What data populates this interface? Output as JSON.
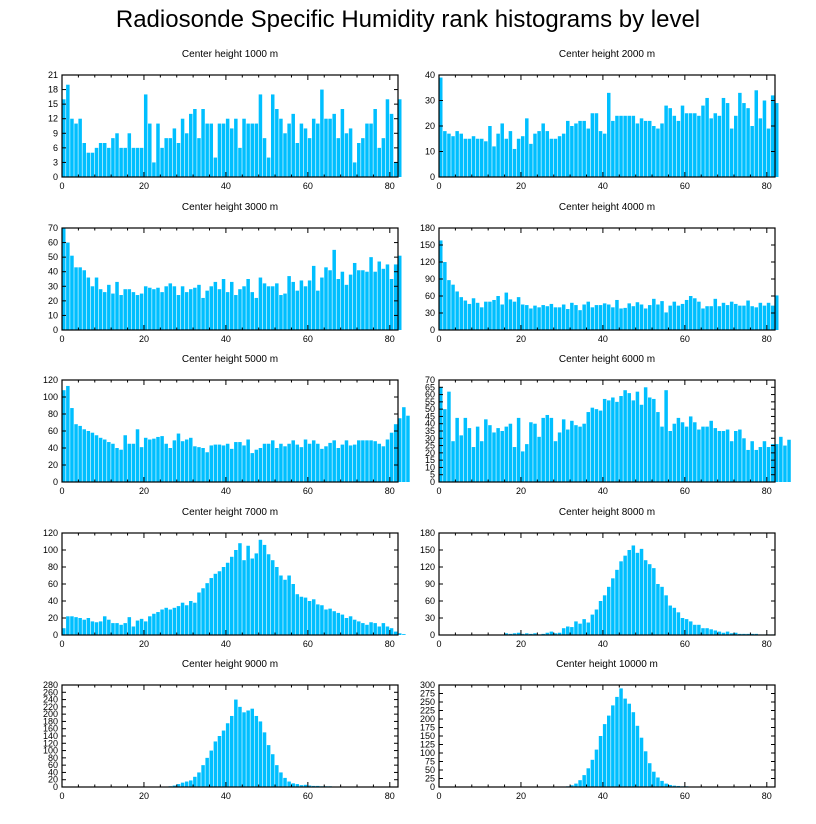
{
  "title": "Radiosonde Specific Humidity rank histograms by level",
  "bar_color": "#00bfff",
  "chart_data": [
    {
      "type": "bar",
      "title": "Center height 1000 m",
      "xlim": [
        0,
        82
      ],
      "ylim": [
        0,
        21
      ],
      "xticks": [
        0,
        20,
        40,
        60,
        80
      ],
      "yticks": [
        0,
        3,
        6,
        9,
        12,
        15,
        18,
        21
      ],
      "values": [
        16,
        19,
        12,
        11,
        12,
        7,
        5,
        5,
        6,
        7,
        7,
        6,
        8,
        9,
        6,
        6,
        9,
        6,
        6,
        6,
        17,
        11,
        3,
        11,
        6,
        8,
        8,
        10,
        7,
        12,
        9,
        13,
        14,
        8,
        14,
        11,
        11,
        4,
        11,
        11,
        12,
        10,
        12,
        6,
        12,
        11,
        11,
        11,
        17,
        8,
        4,
        17,
        14,
        12,
        9,
        11,
        13,
        7,
        11,
        10,
        8,
        12,
        11,
        18,
        12,
        12,
        13,
        8,
        14,
        9,
        10,
        3,
        7,
        8,
        11,
        11,
        14,
        6,
        8,
        16,
        13,
        3,
        16
      ]
    },
    {
      "type": "bar",
      "title": "Center height 2000 m",
      "xlim": [
        0,
        82
      ],
      "ylim": [
        0,
        40
      ],
      "xticks": [
        0,
        20,
        40,
        60,
        80
      ],
      "yticks": [
        0,
        10,
        20,
        30,
        40
      ],
      "values": [
        39,
        18,
        17,
        16,
        18,
        17,
        15,
        15,
        16,
        15,
        15,
        14,
        20,
        12,
        17,
        21,
        15,
        18,
        11,
        15,
        16,
        23,
        13,
        17,
        18,
        21,
        18,
        15,
        15,
        16,
        17,
        22,
        20,
        21,
        22,
        22,
        19,
        25,
        25,
        18,
        17,
        33,
        22,
        24,
        24,
        24,
        24,
        24,
        21,
        23,
        22,
        22,
        20,
        19,
        21,
        28,
        27,
        24,
        22,
        28,
        25,
        25,
        25,
        24,
        28,
        31,
        23,
        25,
        24,
        31,
        29,
        19,
        24,
        33,
        29,
        27,
        20,
        34,
        23,
        30,
        19,
        32,
        29
      ]
    },
    {
      "type": "bar",
      "title": "Center height 3000 m",
      "xlim": [
        0,
        82
      ],
      "ylim": [
        0,
        70
      ],
      "xticks": [
        0,
        20,
        40,
        60,
        80
      ],
      "yticks": [
        0,
        10,
        20,
        30,
        40,
        50,
        60,
        70
      ],
      "values": [
        70,
        60,
        51,
        43,
        43,
        41,
        36,
        30,
        36,
        28,
        26,
        31,
        25,
        33,
        24,
        28,
        28,
        26,
        24,
        25,
        30,
        29,
        28,
        29,
        26,
        30,
        32,
        30,
        24,
        30,
        26,
        28,
        29,
        31,
        22,
        27,
        30,
        33,
        28,
        35,
        26,
        33,
        24,
        28,
        30,
        35,
        26,
        22,
        36,
        32,
        30,
        30,
        32,
        24,
        25,
        37,
        33,
        27,
        34,
        30,
        34,
        44,
        27,
        36,
        43,
        41,
        55,
        35,
        40,
        31,
        38,
        46,
        41,
        41,
        40,
        50,
        40,
        47,
        42,
        45,
        35,
        45,
        51
      ]
    },
    {
      "type": "bar",
      "title": "Center height 4000 m",
      "xlim": [
        0,
        82
      ],
      "ylim": [
        0,
        180
      ],
      "xticks": [
        0,
        20,
        40,
        60,
        80
      ],
      "yticks": [
        0,
        30,
        60,
        90,
        120,
        150,
        180
      ],
      "values": [
        158,
        120,
        88,
        80,
        68,
        58,
        52,
        46,
        56,
        48,
        40,
        50,
        50,
        53,
        60,
        45,
        66,
        54,
        50,
        58,
        45,
        44,
        38,
        43,
        40,
        44,
        42,
        46,
        40,
        40,
        45,
        37,
        48,
        44,
        35,
        45,
        50,
        40,
        44,
        44,
        47,
        45,
        40,
        53,
        38,
        39,
        47,
        42,
        49,
        45,
        38,
        44,
        55,
        45,
        51,
        31,
        43,
        50,
        43,
        46,
        53,
        60,
        56,
        50,
        38,
        42,
        42,
        55,
        42,
        48,
        44,
        50,
        46,
        43,
        43,
        52,
        42,
        40,
        48,
        43,
        48,
        43,
        61
      ]
    },
    {
      "type": "bar",
      "title": "Center height 5000 m",
      "xlim": [
        0,
        82
      ],
      "ylim": [
        0,
        120
      ],
      "xticks": [
        0,
        20,
        40,
        60,
        80
      ],
      "yticks": [
        0,
        20,
        40,
        60,
        80,
        100,
        120
      ],
      "values": [
        108,
        113,
        87,
        68,
        66,
        62,
        60,
        58,
        55,
        52,
        50,
        47,
        45,
        40,
        38,
        55,
        45,
        45,
        62,
        41,
        52,
        50,
        51,
        53,
        54,
        45,
        40,
        49,
        57,
        48,
        50,
        52,
        42,
        41,
        40,
        35,
        43,
        44,
        44,
        43,
        45,
        39,
        47,
        47,
        43,
        50,
        34,
        38,
        40,
        45,
        45,
        49,
        40,
        45,
        42,
        45,
        49,
        44,
        41,
        50,
        45,
        49,
        45,
        39,
        42,
        46,
        49,
        40,
        44,
        49,
        43,
        44,
        49,
        49,
        49,
        49,
        48,
        45,
        42,
        50,
        58,
        68,
        75,
        88,
        78
      ]
    },
    {
      "type": "bar",
      "title": "Center height 6000 m",
      "xlim": [
        0,
        82
      ],
      "ylim": [
        0,
        70
      ],
      "xticks": [
        0,
        20,
        40,
        60,
        80
      ],
      "yticks": [
        0,
        5,
        10,
        15,
        20,
        25,
        30,
        35,
        40,
        45,
        50,
        55,
        60,
        65,
        70
      ],
      "values": [
        65,
        50,
        62,
        28,
        44,
        32,
        44,
        37,
        24,
        38,
        28,
        43,
        39,
        34,
        37,
        35,
        38,
        40,
        24,
        44,
        21,
        26,
        41,
        40,
        31,
        44,
        46,
        44,
        28,
        34,
        43,
        36,
        42,
        39,
        38,
        40,
        48,
        51,
        50,
        49,
        57,
        56,
        58,
        55,
        59,
        63,
        61,
        56,
        62,
        53,
        65,
        58,
        57,
        48,
        38,
        63,
        35,
        40,
        44,
        41,
        38,
        45,
        41,
        36,
        38,
        38,
        42,
        37,
        35,
        35,
        36,
        28,
        35,
        36,
        30,
        22,
        28,
        22,
        24,
        28,
        24,
        26,
        26,
        31,
        25,
        29
      ]
    },
    {
      "type": "bar",
      "title": "Center height 7000 m",
      "xlim": [
        0,
        82
      ],
      "ylim": [
        0,
        120
      ],
      "xticks": [
        0,
        20,
        40,
        60,
        80
      ],
      "yticks": [
        0,
        20,
        40,
        60,
        80,
        100,
        120
      ],
      "values": [
        8,
        22,
        22,
        21,
        20,
        18,
        20,
        16,
        15,
        16,
        22,
        18,
        14,
        14,
        12,
        14,
        21,
        10,
        17,
        19,
        16,
        22,
        25,
        27,
        30,
        32,
        30,
        32,
        34,
        38,
        35,
        40,
        38,
        50,
        55,
        61,
        67,
        72,
        75,
        80,
        85,
        92,
        100,
        108,
        88,
        105,
        90,
        96,
        112,
        106,
        95,
        88,
        80,
        70,
        65,
        70,
        60,
        48,
        45,
        44,
        40,
        42,
        36,
        35,
        30,
        31,
        28,
        26,
        24,
        20,
        22,
        18,
        16,
        14,
        12,
        15,
        14,
        10,
        14,
        10,
        8,
        4,
        2,
        1
      ]
    },
    {
      "type": "bar",
      "title": "Center height 8000 m",
      "xlim": [
        0,
        82
      ],
      "ylim": [
        0,
        180
      ],
      "xticks": [
        0,
        20,
        40,
        60,
        80
      ],
      "yticks": [
        0,
        30,
        60,
        90,
        120,
        150,
        180
      ],
      "values": [
        0,
        0,
        0,
        0,
        0,
        0,
        0,
        0,
        0,
        0,
        0,
        0,
        0,
        0,
        0,
        0,
        3,
        2,
        3,
        4,
        2,
        3,
        2,
        3,
        1,
        2,
        4,
        6,
        3,
        4,
        12,
        15,
        14,
        24,
        20,
        28,
        22,
        36,
        45,
        60,
        70,
        85,
        100,
        115,
        130,
        140,
        150,
        158,
        145,
        152,
        132,
        125,
        118,
        90,
        85,
        70,
        52,
        48,
        40,
        30,
        28,
        24,
        18,
        18,
        12,
        12,
        10,
        8,
        6,
        4,
        6,
        3,
        4,
        2,
        2,
        2,
        2,
        2,
        1,
        1,
        1,
        1
      ]
    },
    {
      "type": "bar",
      "title": "Center height 9000 m",
      "xlim": [
        0,
        82
      ],
      "ylim": [
        0,
        280
      ],
      "xticks": [
        0,
        20,
        40,
        60,
        80
      ],
      "yticks": [
        0,
        20,
        40,
        60,
        80,
        100,
        120,
        140,
        160,
        180,
        200,
        220,
        240,
        260,
        280
      ],
      "values": [
        0,
        0,
        0,
        0,
        0,
        0,
        0,
        0,
        0,
        0,
        0,
        0,
        0,
        0,
        0,
        0,
        0,
        0,
        0,
        0,
        0,
        0,
        0,
        0,
        0,
        0,
        2,
        4,
        8,
        12,
        15,
        18,
        28,
        40,
        60,
        80,
        100,
        125,
        140,
        155,
        175,
        195,
        240,
        220,
        205,
        210,
        215,
        195,
        180,
        150,
        115,
        90,
        60,
        40,
        25,
        15,
        10,
        8,
        5,
        6,
        4,
        3,
        3,
        2,
        2,
        2,
        1,
        1,
        1,
        1,
        0,
        0,
        0,
        0,
        1,
        0,
        0,
        0,
        0,
        0,
        0,
        0,
        0
      ]
    },
    {
      "type": "bar",
      "title": "Center height 10000 m",
      "xlim": [
        0,
        82
      ],
      "ylim": [
        0,
        300
      ],
      "xticks": [
        0,
        20,
        40,
        60,
        80
      ],
      "yticks": [
        0,
        25,
        50,
        75,
        100,
        125,
        150,
        175,
        200,
        225,
        250,
        275,
        300
      ],
      "values": [
        0,
        0,
        0,
        0,
        0,
        0,
        0,
        0,
        0,
        0,
        0,
        0,
        0,
        0,
        0,
        0,
        0,
        0,
        0,
        0,
        0,
        0,
        0,
        0,
        0,
        0,
        0,
        0,
        0,
        0,
        1,
        2,
        5,
        10,
        20,
        35,
        55,
        80,
        110,
        150,
        185,
        210,
        240,
        265,
        290,
        260,
        245,
        220,
        180,
        145,
        105,
        70,
        45,
        28,
        18,
        10,
        6,
        4,
        3,
        2,
        2,
        1,
        1,
        1,
        0,
        0,
        0,
        0,
        0,
        0,
        0,
        0,
        0,
        0,
        0,
        0,
        0,
        0,
        0,
        0,
        0,
        0,
        0
      ]
    }
  ]
}
